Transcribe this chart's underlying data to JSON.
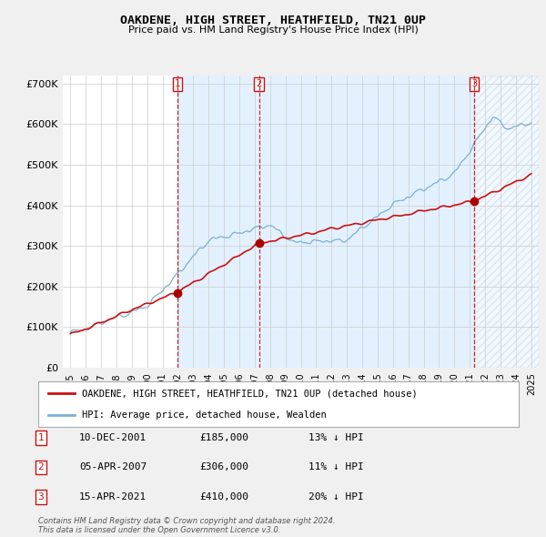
{
  "title": "OAKDENE, HIGH STREET, HEATHFIELD, TN21 0UP",
  "subtitle": "Price paid vs. HM Land Registry's House Price Index (HPI)",
  "legend_line1": "OAKDENE, HIGH STREET, HEATHFIELD, TN21 0UP (detached house)",
  "legend_line2": "HPI: Average price, detached house, Wealden",
  "footer_line1": "Contains HM Land Registry data © Crown copyright and database right 2024.",
  "footer_line2": "This data is licensed under the Open Government Licence v3.0.",
  "transactions": [
    {
      "num": 1,
      "date": "10-DEC-2001",
      "price": "£185,000",
      "hpi": "13% ↓ HPI"
    },
    {
      "num": 2,
      "date": "05-APR-2007",
      "price": "£306,000",
      "hpi": "11% ↓ HPI"
    },
    {
      "num": 3,
      "date": "15-APR-2021",
      "price": "£410,000",
      "hpi": "20% ↓ HPI"
    }
  ],
  "sale_years": [
    2001.95,
    2007.27,
    2021.29
  ],
  "sale_prices": [
    185000,
    306000,
    410000
  ],
  "hpi_color": "#7ab0d4",
  "price_color": "#cc1111",
  "vline_color": "#cc1111",
  "marker_color": "#aa0000",
  "band_color": "#ddeeff",
  "ylim": [
    0,
    720000
  ],
  "xlim_start": 1994.5,
  "xlim_end": 2025.5,
  "yticks": [
    0,
    100000,
    200000,
    300000,
    400000,
    500000,
    600000,
    700000
  ],
  "ytick_labels": [
    "£0",
    "£100K",
    "£200K",
    "£300K",
    "£400K",
    "£500K",
    "£600K",
    "£700K"
  ],
  "bg_color": "#f0f0f0",
  "plot_bg_color": "#ffffff"
}
